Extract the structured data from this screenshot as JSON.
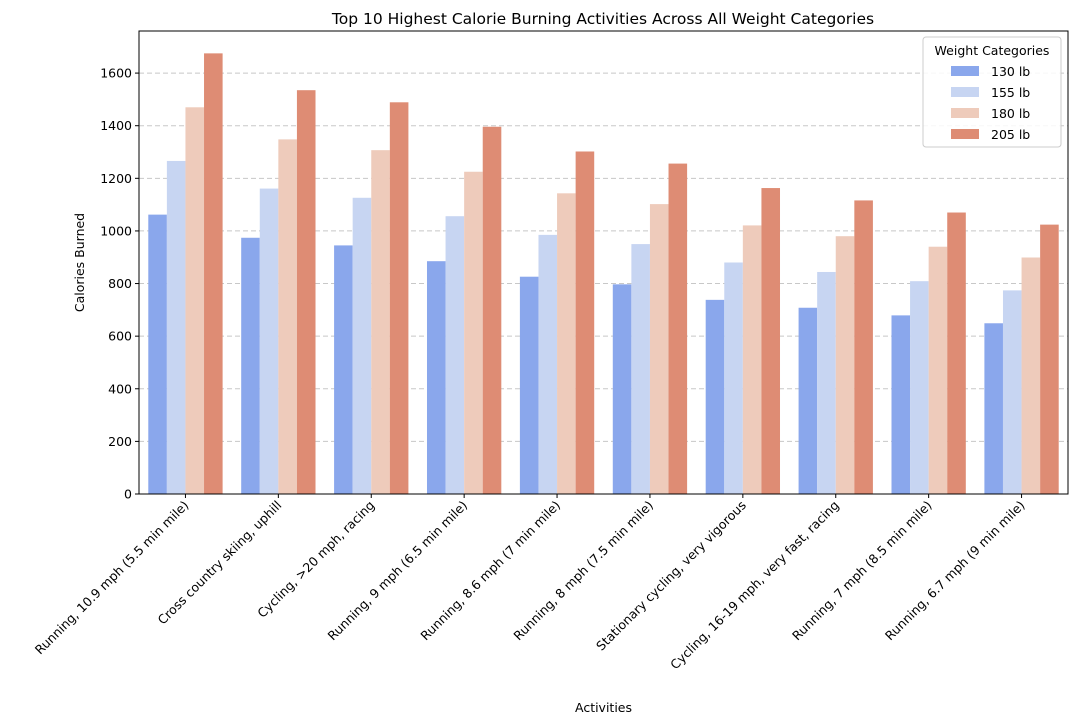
{
  "chart_data": {
    "type": "bar",
    "title": "Top 10 Highest Calorie Burning Activities Across All Weight Categories",
    "xlabel": "Activities",
    "ylabel": "Calories Burned",
    "ylim": [
      0,
      1760
    ],
    "yticks": [
      0,
      200,
      400,
      600,
      800,
      1000,
      1200,
      1400,
      1600
    ],
    "grid": "y-dashed",
    "legend": {
      "title": "Weight Categories",
      "placement": "top-right"
    },
    "categories": [
      "Running, 10.9 mph (5.5 min mile)",
      "Cross country skiing, uphill",
      "Cycling, >20 mph, racing",
      "Running, 9 mph (6.5 min mile)",
      "Running, 8.6 mph (7 min mile)",
      "Running, 8 mph (7.5 min mile)",
      "Stationary cycling, very vigorous",
      "Cycling, 16-19 mph, very fast, racing",
      "Running, 7 mph (8.5 min mile)",
      "Running, 6.7 mph (9 min mile)"
    ],
    "series": [
      {
        "name": "130 lb",
        "color": "#8aa7ec",
        "values": [
          1062,
          974,
          945,
          885,
          826,
          797,
          738,
          708,
          679,
          649
        ]
      },
      {
        "name": "155 lb",
        "color": "#c7d5f2",
        "values": [
          1266,
          1161,
          1126,
          1056,
          985,
          950,
          880,
          844,
          809,
          774
        ]
      },
      {
        "name": "180 lb",
        "color": "#eecbbb",
        "values": [
          1470,
          1348,
          1307,
          1225,
          1143,
          1102,
          1021,
          980,
          940,
          899
        ]
      },
      {
        "name": "205 lb",
        "color": "#de8c74",
        "values": [
          1675,
          1535,
          1489,
          1396,
          1302,
          1256,
          1163,
          1116,
          1070,
          1024
        ]
      }
    ]
  }
}
